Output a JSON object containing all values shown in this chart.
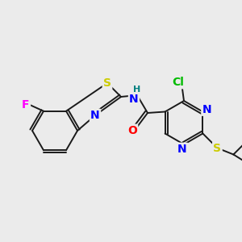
{
  "background_color": "#ebebeb",
  "bond_color": "#1a1a1a",
  "atom_colors": {
    "F": "#ff00ff",
    "S_thia": "#cccc00",
    "S_iso": "#cccc00",
    "N": "#0000ff",
    "O": "#ff0000",
    "Cl": "#00bb00",
    "H": "#008080",
    "C": "#1a1a1a"
  },
  "figsize": [
    3.0,
    3.0
  ],
  "dpi": 100
}
